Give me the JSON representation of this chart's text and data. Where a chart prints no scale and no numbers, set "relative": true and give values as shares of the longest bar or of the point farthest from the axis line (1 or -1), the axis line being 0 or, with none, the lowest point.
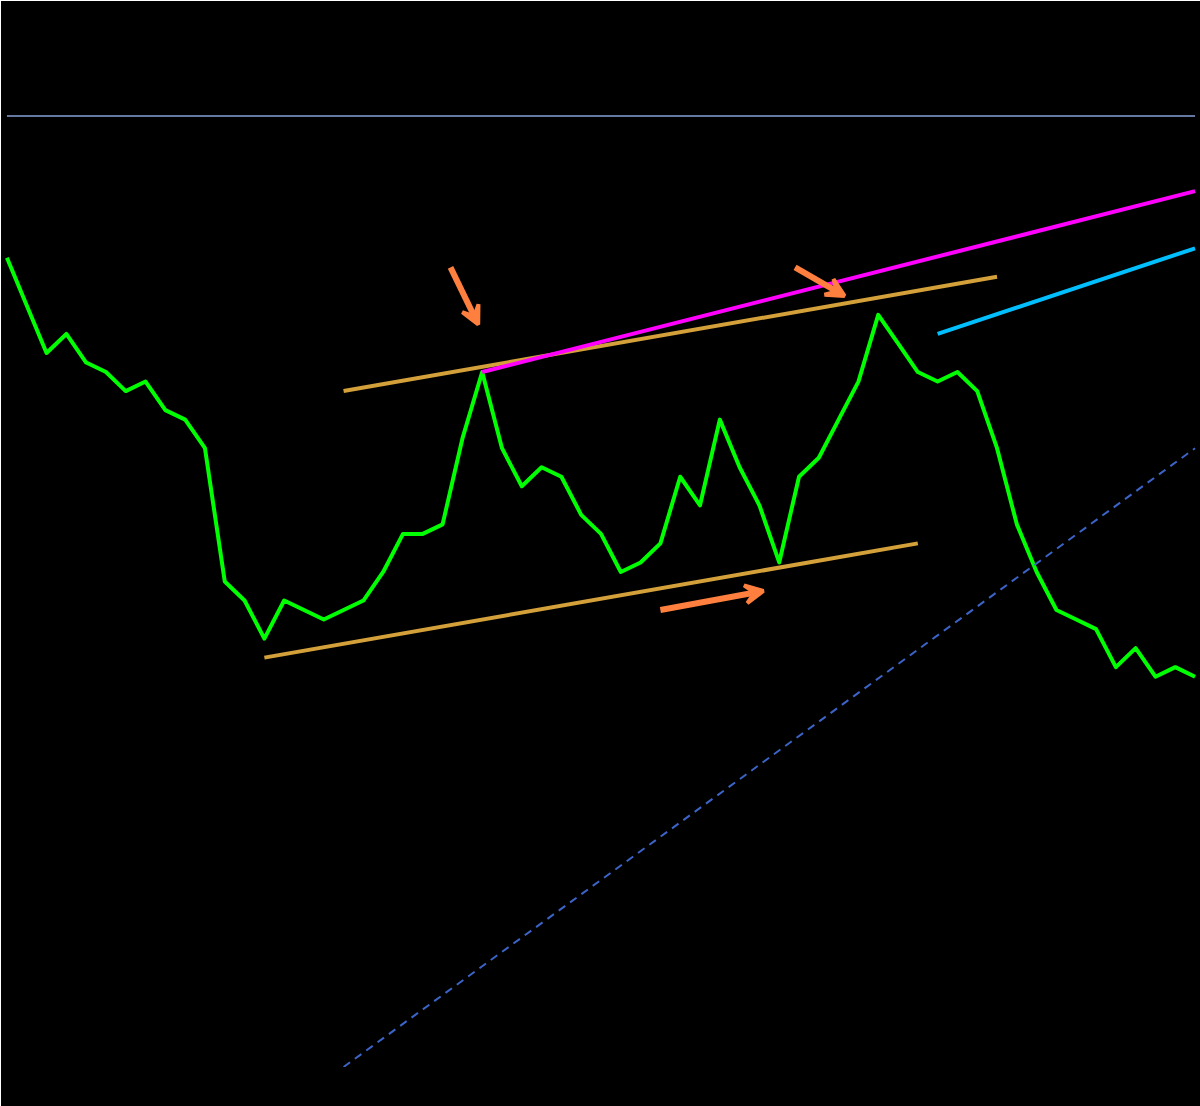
{
  "chart_data": {
    "type": "line",
    "relative": true,
    "grid": false,
    "categories": [
      null,
      null,
      null,
      null,
      null,
      null,
      null,
      null,
      null,
      null,
      null,
      null,
      null,
      null,
      null,
      null,
      null,
      null,
      null,
      null,
      null,
      null,
      null,
      null,
      null,
      null,
      null,
      null,
      null,
      null,
      null,
      null,
      null,
      null,
      null,
      null,
      null,
      null,
      null,
      null,
      null,
      null,
      null,
      null,
      null,
      null,
      null,
      null,
      null,
      null,
      null,
      null,
      null,
      null,
      null,
      null,
      null,
      null,
      null,
      null,
      null
    ],
    "series": [
      {
        "color": "#00ff00",
        "values": [
          0.85,
          0.8,
          0.75,
          0.77,
          0.74,
          0.73,
          0.71,
          0.72,
          0.69,
          0.68,
          0.65,
          0.51,
          0.49,
          0.45,
          0.49,
          0.48,
          0.47,
          0.48,
          0.49,
          0.52,
          0.56,
          0.56,
          0.57,
          0.66,
          0.73,
          0.65,
          0.61,
          0.63,
          0.62,
          0.58,
          0.56,
          0.52,
          0.53,
          0.55,
          0.62,
          0.59,
          0.68,
          0.63,
          0.59,
          0.53,
          0.62,
          0.64,
          0.68,
          0.72,
          0.79,
          0.76,
          0.73,
          0.72,
          0.73,
          0.71,
          0.65,
          0.57,
          0.52,
          0.48,
          0.47,
          0.46,
          0.42,
          0.44,
          0.41,
          0.42,
          0.41
        ]
      },
      {
        "color": "#6478a0",
        "values": [
          1.0,
          null,
          null,
          null,
          null,
          null,
          null,
          null,
          null,
          null,
          null,
          null,
          null,
          null,
          null,
          null,
          null,
          null,
          null,
          null,
          null,
          null,
          null,
          null,
          null,
          null,
          null,
          null,
          null,
          null,
          null,
          null,
          null,
          null,
          null,
          null,
          null,
          null,
          null,
          null,
          null,
          null,
          null,
          null,
          null,
          null,
          null,
          null,
          null,
          null,
          null,
          null,
          null,
          null,
          null,
          null,
          null,
          null,
          null,
          null,
          1.0
        ]
      },
      {
        "color": "#d4a03a",
        "values": [
          null,
          null,
          null,
          null,
          null,
          null,
          null,
          null,
          null,
          null,
          null,
          null,
          null,
          null,
          null,
          null,
          null,
          0.71,
          null,
          null,
          null,
          null,
          null,
          null,
          null,
          null,
          null,
          null,
          null,
          null,
          null,
          null,
          null,
          null,
          null,
          null,
          null,
          null,
          null,
          null,
          null,
          null,
          null,
          null,
          null,
          null,
          null,
          null,
          null,
          null,
          0.83,
          null,
          null,
          null,
          null,
          null,
          null,
          null,
          null,
          null,
          null
        ]
      },
      {
        "color": "#d4a03a",
        "values": [
          null,
          null,
          null,
          null,
          null,
          null,
          null,
          null,
          null,
          null,
          null,
          null,
          null,
          0.43,
          null,
          null,
          null,
          null,
          null,
          null,
          null,
          null,
          null,
          null,
          null,
          null,
          null,
          null,
          null,
          null,
          null,
          null,
          null,
          null,
          null,
          null,
          null,
          null,
          null,
          null,
          null,
          null,
          null,
          null,
          null,
          null,
          0.55,
          null,
          null,
          null,
          null,
          null,
          null,
          null,
          null,
          null,
          null,
          null,
          null,
          null,
          null
        ]
      },
      {
        "color": "#ff00ff",
        "values": [
          null,
          null,
          null,
          null,
          null,
          null,
          null,
          null,
          null,
          null,
          null,
          null,
          null,
          null,
          null,
          null,
          null,
          null,
          null,
          null,
          null,
          null,
          null,
          null,
          0.73,
          null,
          null,
          null,
          null,
          null,
          null,
          null,
          null,
          null,
          null,
          null,
          null,
          null,
          null,
          null,
          null,
          null,
          null,
          null,
          null,
          null,
          null,
          null,
          null,
          null,
          null,
          null,
          null,
          null,
          null,
          null,
          null,
          null,
          null,
          null,
          0.92
        ]
      },
      {
        "color": "#00bfff",
        "values": [
          null,
          null,
          null,
          null,
          null,
          null,
          null,
          null,
          null,
          null,
          null,
          null,
          null,
          null,
          null,
          null,
          null,
          null,
          null,
          null,
          null,
          null,
          null,
          null,
          null,
          null,
          null,
          null,
          null,
          null,
          null,
          null,
          null,
          null,
          null,
          null,
          null,
          null,
          null,
          null,
          null,
          null,
          null,
          null,
          null,
          null,
          null,
          0.77,
          null,
          null,
          null,
          null,
          null,
          null,
          null,
          null,
          null,
          null,
          null,
          null,
          0.86
        ]
      },
      {
        "color": "#3c64c8",
        "line_style": "dashed",
        "values": [
          null,
          null,
          null,
          null,
          null,
          null,
          null,
          null,
          null,
          null,
          null,
          null,
          null,
          null,
          null,
          null,
          null,
          0.0,
          null,
          null,
          null,
          null,
          null,
          null,
          null,
          null,
          null,
          null,
          null,
          null,
          null,
          null,
          null,
          null,
          null,
          null,
          null,
          null,
          null,
          null,
          null,
          null,
          null,
          null,
          null,
          null,
          null,
          null,
          null,
          null,
          null,
          null,
          null,
          null,
          null,
          null,
          null,
          null,
          null,
          null,
          0.65
        ]
      }
    ]
  }
}
